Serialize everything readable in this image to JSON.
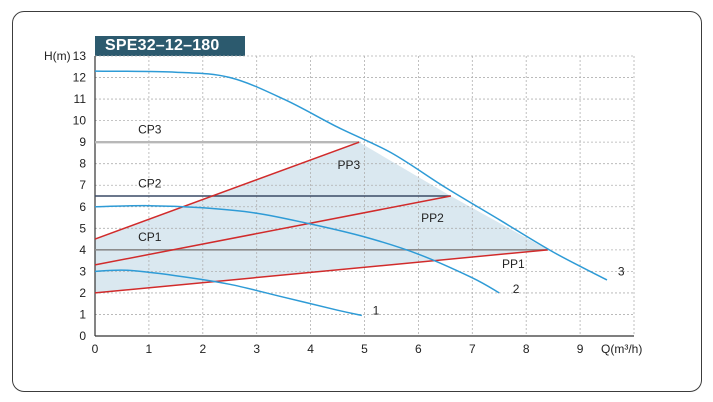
{
  "chart_data": {
    "type": "line",
    "title": "SPE32–12–180",
    "xlabel": "Q(m³/h)",
    "ylabel": "H(m)",
    "xlim": [
      0,
      10
    ],
    "ylim": [
      0,
      13
    ],
    "x_ticks": [
      "0",
      "1",
      "2",
      "3",
      "4",
      "5",
      "6",
      "7",
      "8",
      "9"
    ],
    "y_ticks": [
      "0",
      "1",
      "2",
      "3",
      "4",
      "5",
      "6",
      "7",
      "8",
      "9",
      "10",
      "11",
      "12",
      "13"
    ],
    "grid": true,
    "colors": {
      "speed_curve": "#2e9bd6",
      "pp_line": "#d12b2b",
      "cp_line": "#3a4a66",
      "cp3_line": "#b8b8b8",
      "cp1_line": "#8c8c8c",
      "region_fill": "#bcd6e3",
      "title_bg": "#2c5a6e"
    },
    "speed_curves": [
      {
        "name": "1",
        "points": [
          [
            0,
            3.0
          ],
          [
            0.6,
            3.05
          ],
          [
            1.5,
            2.8
          ],
          [
            2.5,
            2.4
          ],
          [
            3.5,
            1.8
          ],
          [
            4.5,
            1.2
          ],
          [
            4.95,
            0.95
          ]
        ]
      },
      {
        "name": "2",
        "points": [
          [
            0,
            6.0
          ],
          [
            1.0,
            6.05
          ],
          [
            2.0,
            5.95
          ],
          [
            3.0,
            5.7
          ],
          [
            4.0,
            5.2
          ],
          [
            5.0,
            4.6
          ],
          [
            6.0,
            3.8
          ],
          [
            7.0,
            2.7
          ],
          [
            7.5,
            2.0
          ]
        ]
      },
      {
        "name": "3",
        "points": [
          [
            0,
            12.3
          ],
          [
            1.5,
            12.25
          ],
          [
            2.5,
            12.0
          ],
          [
            3.5,
            11.0
          ],
          [
            4.5,
            9.7
          ],
          [
            5.5,
            8.5
          ],
          [
            6.5,
            6.9
          ],
          [
            7.5,
            5.4
          ],
          [
            8.5,
            3.9
          ],
          [
            9.5,
            2.6
          ]
        ]
      }
    ],
    "pp_lines": [
      {
        "name": "PP1",
        "points": [
          [
            0,
            2.0
          ],
          [
            8.4,
            4.0
          ]
        ]
      },
      {
        "name": "PP2",
        "points": [
          [
            0,
            3.3
          ],
          [
            6.6,
            6.5
          ]
        ]
      },
      {
        "name": "PP3",
        "points": [
          [
            0,
            4.5
          ],
          [
            4.9,
            9.0
          ]
        ]
      }
    ],
    "cp_lines": [
      {
        "name": "CP1",
        "points": [
          [
            0,
            4.0
          ],
          [
            8.4,
            4.0
          ]
        ]
      },
      {
        "name": "CP2",
        "points": [
          [
            0,
            6.5
          ],
          [
            6.6,
            6.5
          ]
        ]
      },
      {
        "name": "CP3",
        "points": [
          [
            0,
            9.0
          ],
          [
            4.9,
            9.0
          ]
        ]
      }
    ],
    "region": [
      [
        0,
        4.5
      ],
      [
        4.9,
        9.0
      ],
      [
        6.6,
        6.5
      ],
      [
        8.4,
        4.0
      ],
      [
        0,
        2.0
      ]
    ],
    "annotations": [
      {
        "text": "CP3",
        "x": 0.8,
        "y": 9.4
      },
      {
        "text": "CP2",
        "x": 0.8,
        "y": 6.9
      },
      {
        "text": "CP1",
        "x": 0.8,
        "y": 4.4
      },
      {
        "text": "PP3",
        "x": 4.5,
        "y": 7.75
      },
      {
        "text": "PP2",
        "x": 6.05,
        "y": 5.3
      },
      {
        "text": "PP1",
        "x": 7.55,
        "y": 3.15
      },
      {
        "text": "1",
        "x": 5.15,
        "y": 1.0
      },
      {
        "text": "2",
        "x": 7.75,
        "y": 2.0
      },
      {
        "text": "3",
        "x": 9.7,
        "y": 2.8
      }
    ]
  }
}
